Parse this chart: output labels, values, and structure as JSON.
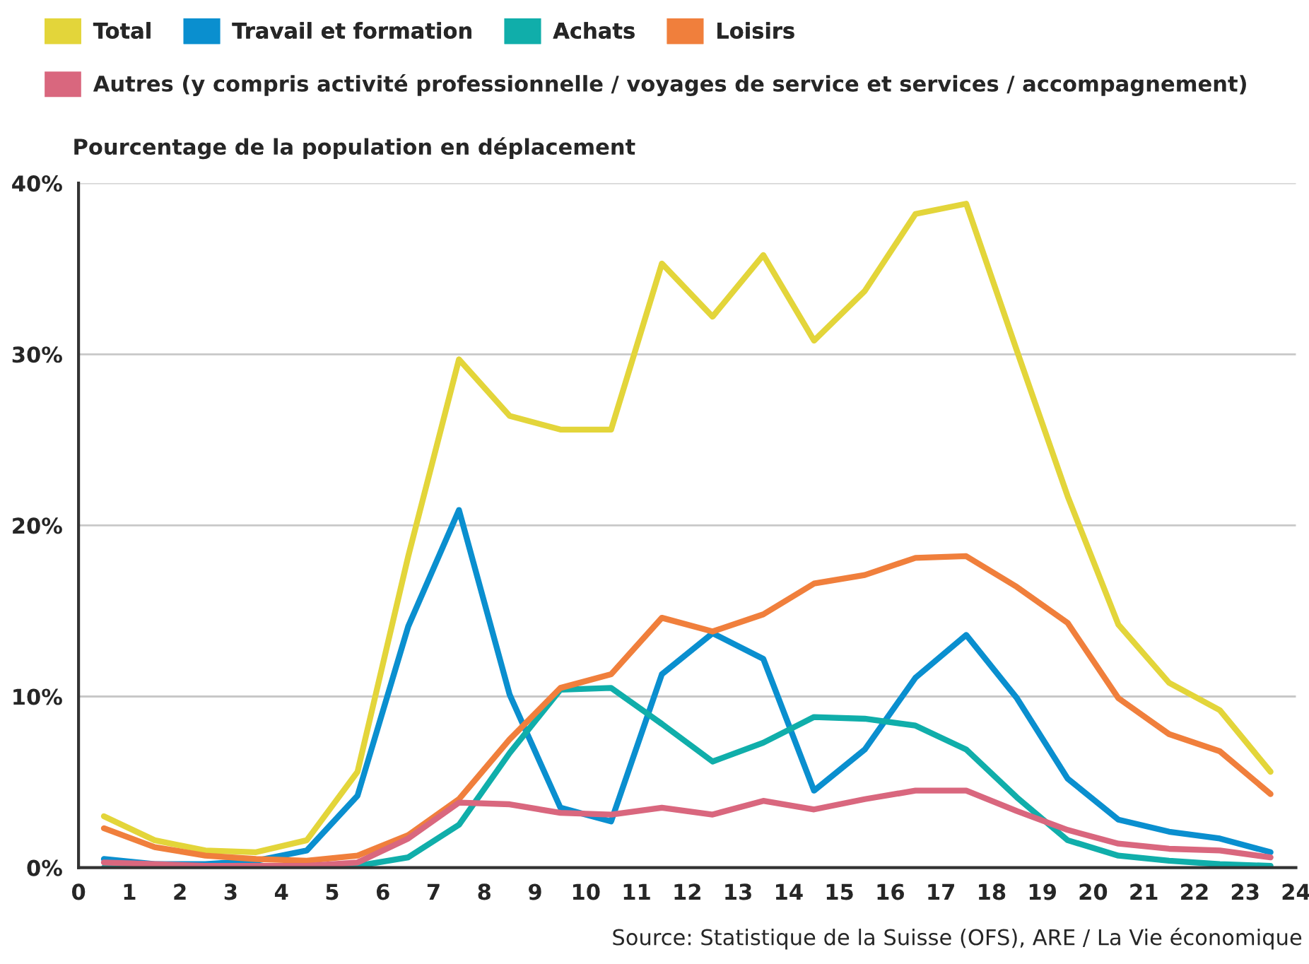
{
  "chart_data": {
    "type": "line",
    "ylabel": "Pourcentage de la population en déplacement",
    "annotations": [
      "Source: Statistique de la Suisse (OFS), ARE / La Vie économique"
    ],
    "x": [
      0.5,
      1.5,
      2.5,
      3.5,
      4.5,
      5.5,
      6.5,
      7.5,
      8.5,
      9.5,
      10.5,
      11.5,
      12.5,
      13.5,
      14.5,
      15.5,
      16.5,
      17.5,
      18.5,
      19.5,
      20.5,
      21.5,
      22.5,
      23.5
    ],
    "series": [
      {
        "name": "Total",
        "color": "#e3d53a",
        "values": [
          3.0,
          1.6,
          1.0,
          0.9,
          1.6,
          5.6,
          18.2,
          29.7,
          26.4,
          25.6,
          25.6,
          35.3,
          32.2,
          35.8,
          30.8,
          33.7,
          38.2,
          38.8,
          30.2,
          21.7,
          14.2,
          10.8,
          9.2,
          5.6
        ]
      },
      {
        "name": "Travail et formation",
        "color": "#0a8fcf",
        "values": [
          0.5,
          0.2,
          0.2,
          0.4,
          1.0,
          4.2,
          14.1,
          20.9,
          10.1,
          3.5,
          2.7,
          11.3,
          13.7,
          12.2,
          4.5,
          6.9,
          11.1,
          13.6,
          9.9,
          5.2,
          2.8,
          2.1,
          1.7,
          0.9
        ]
      },
      {
        "name": "Achats",
        "color": "#10aeaa",
        "values": [
          0.0,
          0.0,
          0.0,
          0.0,
          0.0,
          0.1,
          0.6,
          2.5,
          6.7,
          10.4,
          10.5,
          8.4,
          6.2,
          7.3,
          8.8,
          8.7,
          8.3,
          6.9,
          4.1,
          1.6,
          0.7,
          0.4,
          0.2,
          0.1
        ]
      },
      {
        "name": "Loisirs",
        "color": "#f07f3c",
        "values": [
          2.3,
          1.2,
          0.7,
          0.5,
          0.4,
          0.7,
          1.9,
          4.0,
          7.5,
          10.5,
          11.3,
          14.6,
          13.8,
          14.8,
          16.6,
          17.1,
          18.1,
          18.2,
          16.4,
          14.3,
          9.9,
          7.8,
          6.8,
          4.3
        ]
      },
      {
        "name": "Autres (y compris activité professionnelle / voyages de service et services / accompagnement)",
        "color": "#d9677e",
        "values": [
          0.3,
          0.2,
          0.1,
          0.1,
          0.1,
          0.3,
          1.7,
          3.8,
          3.7,
          3.2,
          3.1,
          3.5,
          3.1,
          3.9,
          3.4,
          4.0,
          4.5,
          4.5,
          3.3,
          2.2,
          1.4,
          1.1,
          1.0,
          0.6
        ]
      }
    ],
    "xlim": [
      0,
      24
    ],
    "xticks": [
      0,
      1,
      2,
      3,
      4,
      5,
      6,
      7,
      8,
      9,
      10,
      11,
      12,
      13,
      14,
      15,
      16,
      17,
      18,
      19,
      20,
      21,
      22,
      23,
      24
    ],
    "ylim": [
      0,
      40
    ],
    "yticks": [
      {
        "value": 0,
        "label": "0%"
      },
      {
        "value": 10,
        "label": "10%"
      },
      {
        "value": 20,
        "label": "20%"
      },
      {
        "value": 30,
        "label": "30%"
      },
      {
        "value": 40,
        "label": "40%"
      }
    ],
    "grid": "y",
    "legend": "top",
    "marker": "none",
    "line_style": "solid"
  }
}
